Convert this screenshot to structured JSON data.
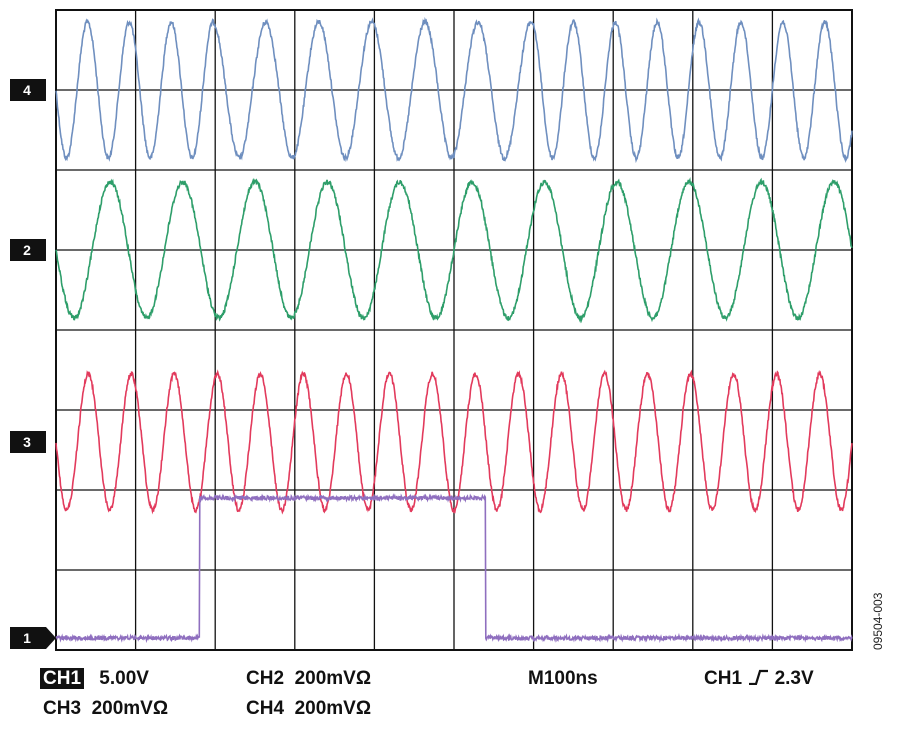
{
  "chart_data": {
    "type": "line",
    "title": "",
    "xlabel": "",
    "ylabel": "",
    "grid": true,
    "x_divisions": 10,
    "y_divisions": 8,
    "series": [
      {
        "marker": "4",
        "color": "#6f8fbf",
        "kind": "sine",
        "periods_per_div": [
          1.9,
          1.9,
          1.5,
          1.5,
          1.5,
          1.5,
          1.9,
          1.9,
          1.9,
          1.9
        ],
        "amplitude_div": 0.85
      },
      {
        "marker": "2",
        "color": "#2e9e6a",
        "kind": "sine",
        "periods_per_div": [
          1.1,
          1.1,
          1.1,
          1.1,
          1.1,
          1.1,
          1.1,
          1.1,
          1.1,
          1.1
        ],
        "amplitude_div": 0.85
      },
      {
        "marker": "3",
        "color": "#e23a5c",
        "kind": "sine",
        "periods_per_div": [
          1.85,
          1.85,
          1.85,
          1.85,
          1.85,
          1.85,
          1.85,
          1.85,
          1.85,
          1.85
        ],
        "amplitude_div": 0.85
      },
      {
        "marker": "1",
        "color": "#8f6fbf",
        "kind": "pulse",
        "low_div": 7.85,
        "high_div": 6.1,
        "rise_div": 1.8,
        "fall_div": 5.4
      }
    ]
  },
  "readouts": {
    "ch1_label": "CH1",
    "ch1_scale": "5.00V",
    "ch2": "CH2  200mVΩ",
    "ch3": "CH3  200mVΩ",
    "ch4": "CH4  200mVΩ",
    "timebase": "M100ns",
    "trigger_source": "CH1",
    "trigger_level": "2.3V"
  },
  "figure_id": "09504-003"
}
